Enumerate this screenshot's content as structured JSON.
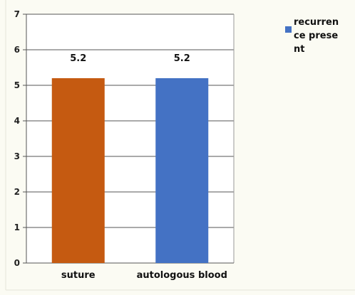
{
  "chart_data": {
    "type": "bar",
    "categories": [
      "suture",
      "autologous blood"
    ],
    "series": [
      {
        "name": "recurrence present",
        "values": [
          5.2,
          5.2
        ]
      }
    ],
    "bar_colors": [
      "#c55a11",
      "#4472c4"
    ],
    "legend": {
      "label": "recurrence present",
      "placement": "right",
      "color": "#4472c4"
    },
    "data_labels": [
      "5.2",
      "5.2"
    ],
    "y_ticks": [
      "0",
      "1",
      "2",
      "3",
      "4",
      "5",
      "6",
      "7"
    ],
    "ylim": [
      0,
      7
    ],
    "grid": true,
    "title": "",
    "xlabel": "",
    "ylabel": ""
  }
}
